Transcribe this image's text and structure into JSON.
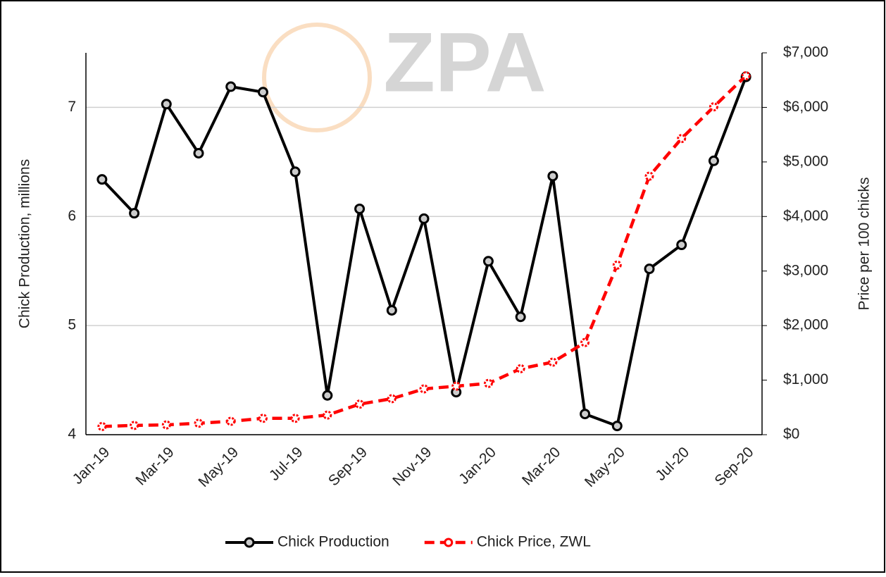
{
  "chart_data": {
    "type": "line",
    "watermark": "ZPA",
    "y_label": "Chick Production, millions",
    "y2_label": "Price per 100 chicks",
    "categories": [
      "Jan-19",
      null,
      "Mar-19",
      null,
      "May-19",
      null,
      "Jul-19",
      null,
      "Sep-19",
      null,
      "Nov-19",
      null,
      "Jan-20",
      null,
      "Mar-20",
      null,
      "May-20",
      null,
      "Jul-20",
      null,
      "Sep-20"
    ],
    "ylim": [
      4,
      7.5
    ],
    "yticks": [
      4,
      5,
      6,
      7
    ],
    "y2lim": [
      0,
      7000
    ],
    "y2ticks": [
      {
        "value": 0,
        "label": "$0"
      },
      {
        "value": 1000,
        "label": "$1,000"
      },
      {
        "value": 2000,
        "label": "$2,000"
      },
      {
        "value": 3000,
        "label": "$3,000"
      },
      {
        "value": 4000,
        "label": "$4,000"
      },
      {
        "value": 5000,
        "label": "$5,000"
      },
      {
        "value": 6000,
        "label": "$6,000"
      },
      {
        "value": 7000,
        "label": "$7,000"
      }
    ],
    "grid": true,
    "legend": "bottom",
    "series": [
      {
        "name": "Chick Production",
        "color": "#000000",
        "values": [
          6.34,
          6.03,
          7.03,
          6.58,
          7.19,
          7.14,
          6.41,
          4.36,
          6.07,
          5.14,
          5.98,
          4.39,
          5.59,
          5.08,
          6.37,
          4.19,
          4.08,
          5.52,
          5.74,
          6.51,
          7.28
        ]
      },
      {
        "name": "Chick Price, ZWL",
        "color": "#ff0000",
        "axis": "y2",
        "values": [
          150,
          170,
          180,
          210,
          245,
          300,
          300,
          360,
          560,
          660,
          840,
          890,
          940,
          1210,
          1330,
          1690,
          3110,
          4740,
          5430,
          6010,
          6580
        ]
      }
    ]
  }
}
